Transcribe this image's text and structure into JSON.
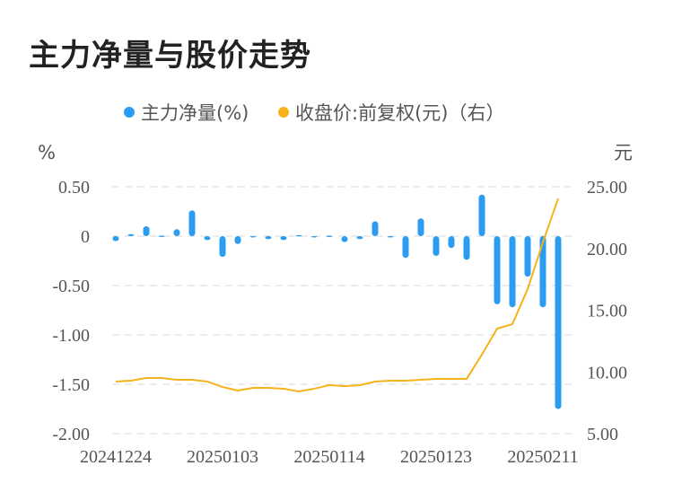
{
  "title": "主力净量与股价走势",
  "chart_data": {
    "type": "bar+line",
    "title": "主力净量与股价走势",
    "legend_position": "top",
    "left_unit": "%",
    "right_unit": "元",
    "left_ylim": [
      -2.0,
      0.5
    ],
    "right_ylim": [
      5,
      25
    ],
    "left_ticks": [
      "0.50",
      "0",
      "-0.50",
      "-1.00",
      "-1.50",
      "-2.00"
    ],
    "right_ticks": [
      "25.00",
      "20.00",
      "15.00",
      "10.00",
      "5.00"
    ],
    "grid": true,
    "x": [
      "20241224",
      "20241225",
      "20241226",
      "20241227",
      "20241230",
      "20241231",
      "20250102",
      "20250103",
      "20250106",
      "20250107",
      "20250108",
      "20250109",
      "20250110",
      "20250113",
      "20250114",
      "20250115",
      "20250116",
      "20250117",
      "20250120",
      "20250121",
      "20250122",
      "20250123",
      "20250124",
      "20250127",
      "20250205",
      "20250206",
      "20250207",
      "20250210",
      "20250211",
      "20250212"
    ],
    "x_tick_labels": [
      "20241224",
      "20250103",
      "20250114",
      "20250123",
      "20250211"
    ],
    "series": [
      {
        "name": "主力净量(%)",
        "type": "bar",
        "axis": "left",
        "color": "#2b9cef",
        "values": [
          -0.05,
          0.02,
          0.1,
          0.005,
          0.07,
          0.26,
          -0.04,
          -0.21,
          -0.08,
          -0.01,
          -0.03,
          -0.04,
          0.01,
          -0.01,
          0.005,
          -0.06,
          -0.03,
          0.15,
          -0.01,
          -0.22,
          0.18,
          -0.2,
          -0.12,
          -0.24,
          0.42,
          -0.69,
          -0.72,
          -0.41,
          -0.72,
          -1.75
        ]
      },
      {
        "name": "收盘价:前复权(元)（右）",
        "type": "line",
        "axis": "right",
        "color": "#f5b21b",
        "values": [
          9.22,
          9.29,
          9.51,
          9.51,
          9.36,
          9.36,
          9.22,
          8.78,
          8.49,
          8.71,
          8.71,
          8.64,
          8.42,
          8.64,
          8.93,
          8.85,
          8.93,
          9.22,
          9.29,
          9.29,
          9.36,
          9.44,
          9.44,
          9.44,
          11.4,
          13.51,
          13.87,
          16.71,
          20.49,
          24.05
        ]
      }
    ]
  }
}
